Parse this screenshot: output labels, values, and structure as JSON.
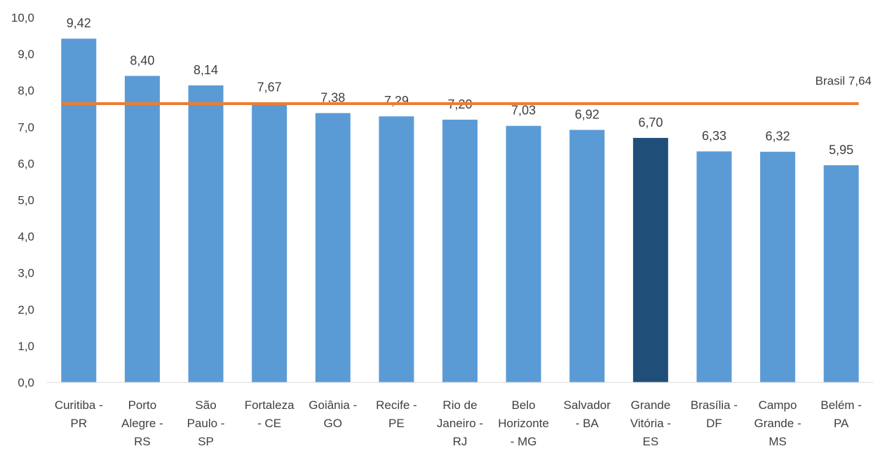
{
  "chart_data": {
    "type": "bar",
    "categories": [
      [
        "Curitiba -",
        "PR"
      ],
      [
        "Porto",
        "Alegre -",
        "RS"
      ],
      [
        "São",
        "Paulo -",
        "SP"
      ],
      [
        "Fortaleza",
        "- CE"
      ],
      [
        "Goiânia -",
        "GO"
      ],
      [
        "Recife -",
        "PE"
      ],
      [
        "Rio de",
        "Janeiro -",
        "RJ"
      ],
      [
        "Belo",
        "Horizonte",
        "- MG"
      ],
      [
        "Salvador",
        "- BA"
      ],
      [
        "Grande",
        "Vitória -",
        "ES"
      ],
      [
        "Brasília -",
        "DF"
      ],
      [
        "Campo",
        "Grande -",
        "MS"
      ],
      [
        "Belém -",
        "PA"
      ]
    ],
    "values": [
      9.42,
      8.4,
      8.14,
      7.67,
      7.38,
      7.29,
      7.2,
      7.03,
      6.92,
      6.7,
      6.33,
      6.32,
      5.95
    ],
    "value_labels": [
      "9,42",
      "8,40",
      "8,14",
      "7,67",
      "7,38",
      "7,29",
      "7,20",
      "7,03",
      "6,92",
      "6,70",
      "6,33",
      "6,32",
      "5,95"
    ],
    "highlight_index": 9,
    "ylim": [
      0,
      10
    ],
    "yticks": [
      "0,0",
      "1,0",
      "2,0",
      "3,0",
      "4,0",
      "5,0",
      "6,0",
      "7,0",
      "8,0",
      "9,0",
      "10,0"
    ],
    "reference_line": {
      "value": 7.64,
      "label": "Brasil 7,64"
    },
    "grid": false,
    "colors": {
      "bar": "#5b9bd5",
      "highlight": "#1f4e79",
      "reference": "#ed7d31",
      "axis": "#d9d9d9"
    }
  }
}
